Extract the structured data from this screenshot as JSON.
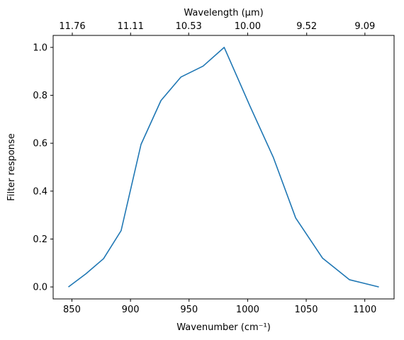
{
  "chart_data": {
    "type": "line",
    "title": "",
    "xlabel": "Wavenumber (cm⁻¹)",
    "ylabel": "Filter response",
    "x2label": "Wavelength (μm)",
    "xlim": [
      834,
      1125
    ],
    "ylim": [
      -0.05,
      1.05
    ],
    "grid": false,
    "legend": "none",
    "line_color": "#1f77b4",
    "xticks": [
      850,
      900,
      950,
      1000,
      1050,
      1100
    ],
    "xtick_labels": [
      "850",
      "900",
      "950",
      "1000",
      "1050",
      "1100"
    ],
    "yticks": [
      0.0,
      0.2,
      0.4,
      0.6,
      0.8,
      1.0
    ],
    "ytick_labels": [
      "0.0",
      "0.2",
      "0.4",
      "0.6",
      "0.8",
      "1.0"
    ],
    "x2ticks_wavenumber": [
      850.34,
      900.09,
      949.67,
      1000,
      1050.42,
      1100.11
    ],
    "x2tick_labels": [
      "11.76",
      "11.11",
      "10.53",
      "10.00",
      "9.52",
      "9.09"
    ],
    "series": [
      {
        "x": [
          847,
          862,
          877,
          892,
          909,
          926,
          943,
          962,
          980,
          1002,
          1022,
          1041,
          1064,
          1087,
          1112
        ],
        "y": [
          0.0,
          0.055,
          0.118,
          0.235,
          0.595,
          0.778,
          0.876,
          0.922,
          1.0,
          0.755,
          0.54,
          0.288,
          0.12,
          0.03,
          0.0
        ]
      }
    ]
  }
}
